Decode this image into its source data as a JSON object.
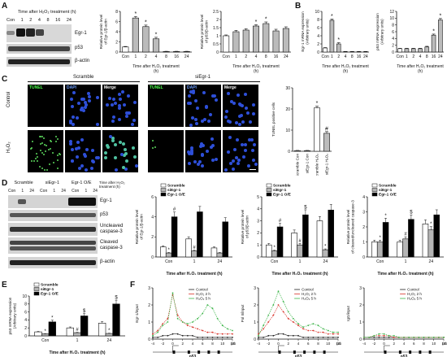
{
  "panel_labels": {
    "A": "A",
    "B": "B",
    "C": "C",
    "D": "D",
    "E": "E",
    "F": "F"
  },
  "A": {
    "time_header": "Time after H₂O₂ treatment (h)",
    "lanes": [
      "Con",
      "1",
      "2",
      "4",
      "8",
      "16",
      "24"
    ],
    "blots": [
      "Egr-1",
      "p53",
      "β-actin"
    ]
  },
  "B": {},
  "C": {
    "groups": [
      "Scramble",
      "siEgr-1"
    ],
    "columns": [
      "TUNEL",
      "DAPI",
      "Merge"
    ],
    "rows": [
      "Control",
      "H₂O₂"
    ]
  },
  "D": {
    "groups": [
      "Scramble",
      "siEgr-1",
      "Egr-1 O/E"
    ],
    "lanes": [
      "Con",
      "1",
      "24",
      "Con",
      "1",
      "24",
      "Con",
      "1",
      "24"
    ],
    "time_header": "Time after H₂O₂ treatment (h)",
    "blots": [
      "Egr-1",
      "p53",
      "Uncleaved caspase-3",
      "Cleaved caspase-3",
      "β-actin"
    ]
  },
  "E": {},
  "F": {},
  "chart_data": [
    {
      "id": "A1",
      "type": "bar",
      "categories": [
        "Con",
        "1",
        "2",
        "4",
        "8",
        "16",
        "24"
      ],
      "values": [
        1.0,
        6.7,
        5.0,
        2.6,
        0.1,
        0.1,
        0.1
      ],
      "errors": [
        0.1,
        0.3,
        0.3,
        0.3,
        0.05,
        0.05,
        0.05
      ],
      "stars": [
        false,
        true,
        true,
        true,
        false,
        false,
        false
      ],
      "ylabel": "Relative protein level of Egr-1/β-actin",
      "xlabel": "Time after H₂O₂ treatment (h)",
      "ylim": [
        0,
        8
      ],
      "yticks": [
        0,
        2,
        4,
        6,
        8
      ]
    },
    {
      "id": "A2",
      "type": "bar",
      "categories": [
        "Con",
        "1",
        "2",
        "4",
        "8",
        "16",
        "24"
      ],
      "values": [
        1.0,
        1.25,
        1.35,
        1.6,
        1.75,
        1.3,
        1.45
      ],
      "errors": [
        0.05,
        0.08,
        0.08,
        0.08,
        0.1,
        0.1,
        0.1
      ],
      "stars": [
        false,
        false,
        false,
        true,
        true,
        false,
        false
      ],
      "ylabel": "Relative protein level of p53/β-actin",
      "xlabel": "Time after H₂O₂ treatment (h)",
      "ylim": [
        0,
        2.5
      ],
      "yticks": [
        0.0,
        0.5,
        1.0,
        1.5,
        2.0,
        2.5
      ]
    },
    {
      "id": "B1",
      "type": "bar",
      "categories": [
        "Con",
        "1",
        "2",
        "4",
        "8",
        "16",
        "24"
      ],
      "values": [
        1.0,
        7.8,
        2.0,
        0.1,
        0.1,
        0.1,
        0.1
      ],
      "errors": [
        0.1,
        0.3,
        0.3,
        0.05,
        0.05,
        0.05,
        0.05
      ],
      "stars": [
        false,
        true,
        true,
        false,
        false,
        false,
        false
      ],
      "ylabel": "Egr-1 mRNA expression (Arbitrary units)",
      "xlabel": "Time after H₂O₂ treatment (h)",
      "ylim": [
        0,
        10
      ],
      "yticks": [
        0,
        2,
        4,
        6,
        8,
        10
      ]
    },
    {
      "id": "B2",
      "type": "bar",
      "categories": [
        "Con",
        "1",
        "2",
        "4",
        "8",
        "16",
        "24"
      ],
      "values": [
        1.0,
        1.0,
        1.0,
        1.0,
        1.5,
        5.0,
        9.5
      ],
      "errors": [
        0.1,
        0.1,
        0.1,
        0.1,
        0.2,
        0.3,
        0.4
      ],
      "stars": [
        false,
        false,
        false,
        false,
        false,
        true,
        true
      ],
      "ylabel": "p53 mRNA expression (Arbitrary units)",
      "xlabel": "Time after H₂O₂ treatment (h)",
      "ylim": [
        0,
        12
      ],
      "yticks": [
        0,
        2,
        4,
        6,
        8,
        10,
        12
      ]
    },
    {
      "id": "C1",
      "type": "bar",
      "categories": [
        "Scramble Con",
        "siEgr-1 Con",
        "Scramble H₂O₂",
        "siEgr-1 H₂O₂"
      ],
      "values": [
        0.3,
        0.3,
        20.5,
        8.5
      ],
      "errors": [
        0.1,
        0.1,
        0.8,
        0.8
      ],
      "marks": [
        "",
        "",
        "*",
        "#"
      ],
      "ylabel": "TUNEL positive cells",
      "ylim": [
        0,
        30
      ],
      "yticks": [
        0,
        10,
        20,
        30
      ]
    },
    {
      "id": "D1",
      "type": "bar",
      "categories": [
        "Con",
        "1",
        "24"
      ],
      "series": [
        {
          "name": "Scramble",
          "values": [
            1.0,
            1.8,
            0.9
          ]
        },
        {
          "name": "siEgr-1",
          "values": [
            0.4,
            0.6,
            0.4
          ]
        },
        {
          "name": "Egr-1 O/E",
          "values": [
            4.0,
            4.5,
            3.5
          ]
        }
      ],
      "marks": [
        [
          "",
          "",
          ""
        ],
        [
          "*",
          "#",
          ""
        ],
        [
          "#",
          "",
          ""
        ]
      ],
      "ylabel": "Relative protein level of Egr-1/β-actin",
      "xlabel": "Time after H₂O₂ treatment (h)",
      "ylim": [
        0,
        6
      ],
      "yticks": [
        0,
        2,
        4,
        6
      ]
    },
    {
      "id": "D2",
      "type": "bar",
      "categories": [
        "Con",
        "1",
        "24"
      ],
      "series": [
        {
          "name": "Scramble",
          "values": [
            1.0,
            2.0,
            3.0
          ]
        },
        {
          "name": "siEgr-1",
          "values": [
            0.5,
            1.0,
            0.6
          ]
        },
        {
          "name": "Egr-1 O/E",
          "values": [
            2.5,
            3.5,
            3.9
          ]
        }
      ],
      "marks": [
        [
          "",
          "",
          ""
        ],
        [
          "*",
          "#",
          "*"
        ],
        [
          "#",
          "$",
          ""
        ]
      ],
      "ylabel": "Relative protein level of p53/β-actin",
      "xlabel": "Time after H₂O₂ treatment (h)",
      "ylim": [
        0,
        5
      ],
      "yticks": [
        0,
        1,
        2,
        3,
        4,
        5
      ]
    },
    {
      "id": "D3",
      "type": "bar",
      "categories": [
        "Con",
        "1",
        "24"
      ],
      "series": [
        {
          "name": "Scramble",
          "values": [
            1.0,
            1.0,
            2.2
          ]
        },
        {
          "name": "siEgr-1",
          "values": [
            1.0,
            1.2,
            1.8
          ]
        },
        {
          "name": "Egr-1 O/E",
          "values": [
            2.3,
            2.5,
            2.8
          ]
        }
      ],
      "marks": [
        [
          "",
          "",
          ""
        ],
        [
          "*",
          "#",
          "*"
        ],
        [
          "*",
          "$",
          ""
        ]
      ],
      "ylabel": "Relative protein level of cleaved/uncleaved caspase-3",
      "xlabel": "Time after H₂O₂ treatment (h)",
      "ylim": [
        0,
        4
      ],
      "yticks": [
        0,
        1,
        2,
        3,
        4
      ]
    },
    {
      "id": "E1",
      "type": "bar",
      "categories": [
        "Con",
        "1",
        "24"
      ],
      "series": [
        {
          "name": "Scramble",
          "values": [
            1.0,
            2.0,
            3.2
          ]
        },
        {
          "name": "siEgr-1",
          "values": [
            0.5,
            0.8,
            0.6
          ]
        },
        {
          "name": "Egr-1 O/E",
          "values": [
            3.5,
            5.0,
            8.0
          ]
        }
      ],
      "marks": [
        [
          "",
          "",
          ""
        ],
        [
          "*",
          "#",
          "*"
        ],
        [
          "*",
          "$",
          "$"
        ]
      ],
      "ylabel": "p53 mRNA expression (Arbitrary units)",
      "xlabel": "Time after H₂O₂ treatment (h)",
      "ylim": [
        0,
        10
      ],
      "yticks": [
        0,
        2,
        4,
        6,
        8,
        10
      ]
    },
    {
      "id": "F1",
      "type": "line",
      "x": [
        -4,
        -3,
        -2,
        -1,
        0,
        1,
        2,
        3,
        4,
        5,
        6,
        7,
        8,
        9,
        10,
        11,
        12
      ],
      "series": [
        {
          "name": "Control",
          "color": "#222",
          "values": [
            0.1,
            0.1,
            0.2,
            0.2,
            0.3,
            0.3,
            0.2,
            0.2,
            0.2,
            0.1,
            0.1,
            0.1,
            0.1,
            0.1,
            0.1,
            0.1,
            0.1
          ]
        },
        {
          "name": "H₂O₂ 2 h",
          "color": "#d9342b",
          "values": [
            0.3,
            0.5,
            0.9,
            1.2,
            2.6,
            1.4,
            1.0,
            0.8,
            0.7,
            0.6,
            0.5,
            0.4,
            0.4,
            0.3,
            0.3,
            0.3,
            0.3
          ]
        },
        {
          "name": "H₂O₂ 5 h",
          "color": "#3db54a",
          "values": [
            0.2,
            0.4,
            0.8,
            1.0,
            2.7,
            1.2,
            1.0,
            0.9,
            1.0,
            1.2,
            1.5,
            2.0,
            1.8,
            1.2,
            0.8,
            0.6,
            0.5
          ]
        }
      ],
      "ylabel": "Egr-1/input",
      "xlabel": "p53",
      "xlim": [
        -4,
        12
      ],
      "ylim": [
        0,
        3
      ],
      "yticks": [
        0,
        1,
        2,
        3
      ]
    },
    {
      "id": "F2",
      "type": "line",
      "x": [
        -4,
        -3,
        -2,
        -1,
        0,
        1,
        2,
        3,
        4,
        5,
        6,
        7,
        8,
        9,
        10,
        11,
        12
      ],
      "series": [
        {
          "name": "Control",
          "color": "#222",
          "values": [
            0.1,
            0.1,
            0.2,
            0.2,
            0.3,
            0.3,
            0.2,
            0.2,
            0.2,
            0.1,
            0.1,
            0.1,
            0.1,
            0.1,
            0.1,
            0.1,
            0.1
          ]
        },
        {
          "name": "H₂O₂ 2 h",
          "color": "#d9342b",
          "values": [
            0.3,
            0.6,
            1.0,
            1.4,
            2.0,
            1.6,
            1.2,
            1.0,
            0.8,
            0.6,
            0.5,
            0.5,
            0.4,
            0.4,
            0.3,
            0.3,
            0.3
          ]
        },
        {
          "name": "H₂O₂ 5 h",
          "color": "#3db54a",
          "values": [
            0.2,
            0.8,
            1.4,
            2.0,
            2.8,
            2.2,
            1.6,
            1.2,
            0.9,
            0.7,
            0.8,
            0.9,
            0.8,
            0.6,
            0.5,
            0.4,
            0.4
          ]
        }
      ],
      "ylabel": "Pol II/input",
      "xlabel": "p53",
      "xlim": [
        -4,
        12
      ],
      "ylim": [
        0,
        3
      ],
      "yticks": [
        0,
        1,
        2,
        3
      ]
    },
    {
      "id": "F3",
      "type": "line",
      "x": [
        -4,
        -3,
        -2,
        -1,
        0,
        1,
        2,
        3,
        4,
        5,
        6,
        7,
        8,
        9,
        10,
        11,
        12
      ],
      "series": [
        {
          "name": "Control",
          "color": "#222",
          "values": [
            0.1,
            0.1,
            0.1,
            0.1,
            0.1,
            0.1,
            0.1,
            0.1,
            0.1,
            0.1,
            0.1,
            0.1,
            0.1,
            0.1,
            0.1,
            0.1,
            0.1
          ]
        },
        {
          "name": "H₂O₂ 2 h",
          "color": "#d9342b",
          "values": [
            0.1,
            0.1,
            0.2,
            0.2,
            0.2,
            0.2,
            0.1,
            0.1,
            0.1,
            0.1,
            0.1,
            0.1,
            0.1,
            0.1,
            0.1,
            0.1,
            0.1
          ]
        },
        {
          "name": "H₂O₂ 5 h",
          "color": "#3db54a",
          "values": [
            0.1,
            0.1,
            0.2,
            0.3,
            0.3,
            0.2,
            0.2,
            0.1,
            0.1,
            0.1,
            0.1,
            0.1,
            0.1,
            0.1,
            0.1,
            0.1,
            0.1
          ]
        }
      ],
      "ylabel": "IgG/input",
      "xlabel": "p53",
      "xlim": [
        -4,
        12
      ],
      "ylim": [
        0,
        3
      ],
      "yticks": [
        0,
        1,
        2,
        3
      ]
    }
  ]
}
